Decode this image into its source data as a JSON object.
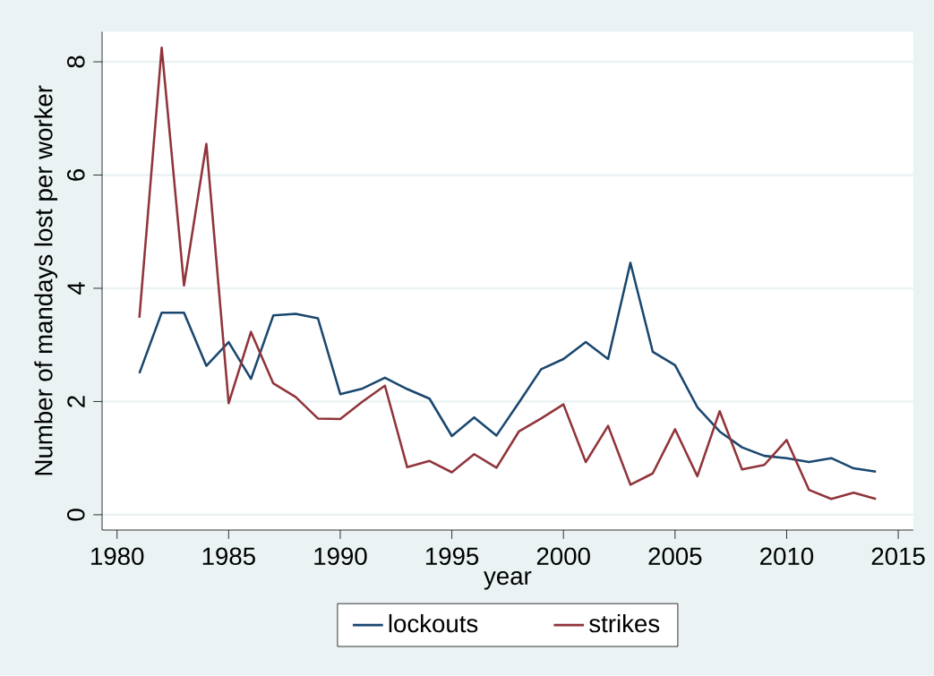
{
  "chart_data": {
    "type": "line",
    "xlabel": "year",
    "ylabel": "Number of mandays lost per worker",
    "x": [
      1981,
      1982,
      1983,
      1984,
      1985,
      1986,
      1987,
      1988,
      1989,
      1990,
      1991,
      1992,
      1993,
      1994,
      1995,
      1996,
      1997,
      1998,
      1999,
      2000,
      2001,
      2002,
      2003,
      2004,
      2005,
      2006,
      2007,
      2008,
      2009,
      2010,
      2011,
      2012,
      2013,
      2014
    ],
    "series": [
      {
        "name": "lockouts",
        "color": "#1a476f",
        "values": [
          2.5,
          3.57,
          3.57,
          2.63,
          3.05,
          2.4,
          3.52,
          3.55,
          3.47,
          2.13,
          2.23,
          2.42,
          2.22,
          2.05,
          1.39,
          1.72,
          1.4,
          1.98,
          2.57,
          2.75,
          3.05,
          2.75,
          4.45,
          2.88,
          2.64,
          1.9,
          1.47,
          1.19,
          1.04,
          1.0,
          0.93,
          1.0,
          0.82,
          0.76
        ]
      },
      {
        "name": "strikes",
        "color": "#90353b",
        "values": [
          3.48,
          8.25,
          4.05,
          6.55,
          1.97,
          3.23,
          2.32,
          2.08,
          1.7,
          1.69,
          2.0,
          2.28,
          0.84,
          0.95,
          0.75,
          1.07,
          0.83,
          1.47,
          1.7,
          1.95,
          0.93,
          1.57,
          0.53,
          0.73,
          1.51,
          0.68,
          1.83,
          0.8,
          0.88,
          1.32,
          0.44,
          0.28,
          0.39,
          0.28
        ]
      }
    ],
    "xlim": [
      1979.33,
      2015.67
    ],
    "ylim": [
      -0.27,
      8.53
    ],
    "xticks": [
      1980,
      1985,
      1990,
      1995,
      2000,
      2005,
      2010,
      2015
    ],
    "yticks": [
      0,
      2,
      4,
      6,
      8
    ],
    "grid": "y",
    "legend": "bottom",
    "marker": "none",
    "line_style": "solid"
  }
}
